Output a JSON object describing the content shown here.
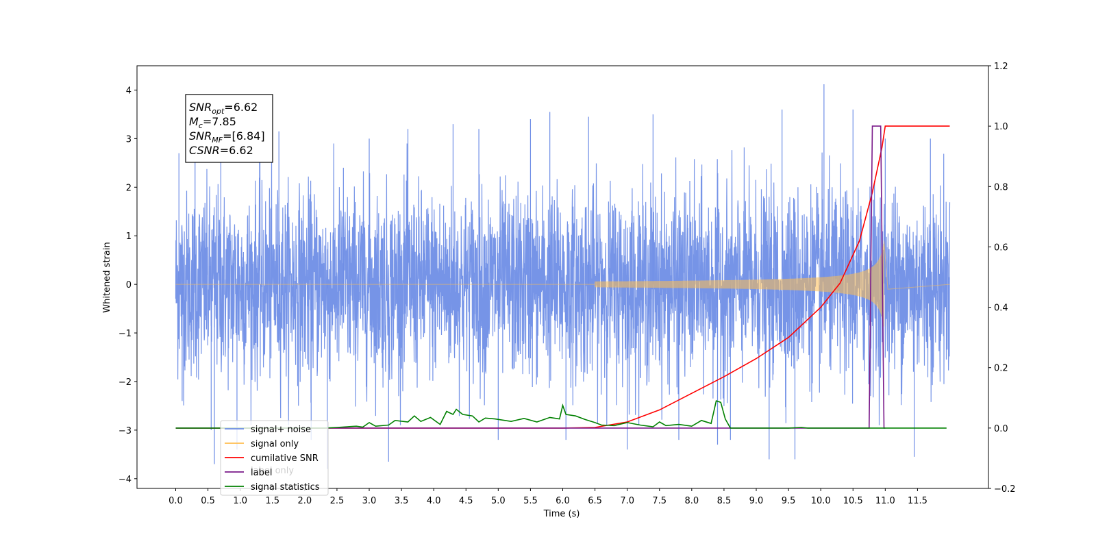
{
  "chart_data": {
    "type": "line",
    "xlabel": "Time (s)",
    "ylabel": "Whitened strain",
    "xlim": [
      -0.6,
      12.6
    ],
    "ylim": [
      -4.2,
      4.5
    ],
    "y2lim": [
      -0.2,
      1.2
    ],
    "x_ticks": [
      0.0,
      0.5,
      1.0,
      1.5,
      2.0,
      2.5,
      3.0,
      3.5,
      4.0,
      4.5,
      5.0,
      5.5,
      6.0,
      6.5,
      7.0,
      7.5,
      8.0,
      8.5,
      9.0,
      9.5,
      10.0,
      10.5,
      11.0,
      11.5
    ],
    "x_tick_labels": [
      "0.0",
      "0.5",
      "1.0",
      "1.5",
      "2.0",
      "2.5",
      "3.0",
      "3.5",
      "4.0",
      "4.5",
      "5.0",
      "5.5",
      "6.0",
      "6.5",
      "7.0",
      "7.5",
      "8.0",
      "8.5",
      "9.0",
      "9.5",
      "10.0",
      "10.5",
      "11.0",
      "11.5"
    ],
    "y_ticks": [
      -4,
      -3,
      -2,
      -1,
      0,
      1,
      2,
      3,
      4
    ],
    "y_tick_labels": [
      "−4",
      "−3",
      "−2",
      "−1",
      "0",
      "1",
      "2",
      "3",
      "4"
    ],
    "y2_ticks": [
      -0.2,
      0.0,
      0.2,
      0.4,
      0.6,
      0.8,
      1.0,
      1.2
    ],
    "y2_tick_labels": [
      "−0.2",
      "0.0",
      "0.2",
      "0.4",
      "0.6",
      "0.8",
      "1.0",
      "1.2"
    ],
    "legend_position": "lower-left",
    "grid": false,
    "series": [
      {
        "name": "signal+ noise",
        "color": "#6f8ee6",
        "axis": "left",
        "description_values": {
          "x_range": [
            0.0,
            12.0
          ],
          "typical_band": [
            -1.6,
            1.6
          ],
          "max_peak": 4.12,
          "min_peak": -3.82
        },
        "peaks": [
          {
            "x": 0.05,
            "y": 2.7
          },
          {
            "x": 0.1,
            "y": -2.4
          },
          {
            "x": 0.3,
            "y": 3.2
          },
          {
            "x": 0.55,
            "y": -3.0
          },
          {
            "x": 0.6,
            "y": -3.7
          },
          {
            "x": 0.7,
            "y": 2.9
          },
          {
            "x": 0.95,
            "y": -3.4
          },
          {
            "x": 1.3,
            "y": 3.0
          },
          {
            "x": 1.6,
            "y": 3.15
          },
          {
            "x": 2.1,
            "y": -3.2
          },
          {
            "x": 2.35,
            "y": -3.8
          },
          {
            "x": 2.6,
            "y": 2.4
          },
          {
            "x": 3.0,
            "y": 3.0
          },
          {
            "x": 3.3,
            "y": -3.65
          },
          {
            "x": 3.6,
            "y": 3.2
          },
          {
            "x": 4.3,
            "y": 3.3
          },
          {
            "x": 4.7,
            "y": 3.2
          },
          {
            "x": 5.0,
            "y": -3.2
          },
          {
            "x": 5.5,
            "y": 3.4
          },
          {
            "x": 5.8,
            "y": 3.55
          },
          {
            "x": 6.05,
            "y": -3.2
          },
          {
            "x": 6.4,
            "y": 3.45
          },
          {
            "x": 7.0,
            "y": -3.4
          },
          {
            "x": 7.4,
            "y": 3.5
          },
          {
            "x": 7.8,
            "y": -3.2
          },
          {
            "x": 8.4,
            "y": -3.3
          },
          {
            "x": 8.6,
            "y": -3.2
          },
          {
            "x": 9.2,
            "y": -3.6
          },
          {
            "x": 9.4,
            "y": 3.6
          },
          {
            "x": 9.6,
            "y": -3.6
          },
          {
            "x": 10.05,
            "y": 4.12
          },
          {
            "x": 10.5,
            "y": 3.6
          },
          {
            "x": 11.0,
            "y": 3.0
          },
          {
            "x": 11.45,
            "y": -3.55
          },
          {
            "x": 11.7,
            "y": 3.0
          }
        ]
      },
      {
        "name": "signal only",
        "color": "#ffbe50",
        "axis": "left",
        "description_values": {
          "chirp_start": 6.5,
          "merger": 10.98,
          "peak_amplitude": 0.9
        }
      },
      {
        "name": "cumilative SNR",
        "color": "#ff0000",
        "axis": "right",
        "points": [
          [
            0.0,
            0.0
          ],
          [
            6.0,
            0.0
          ],
          [
            6.5,
            0.002
          ],
          [
            7.0,
            0.02
          ],
          [
            7.5,
            0.06
          ],
          [
            8.0,
            0.115
          ],
          [
            8.5,
            0.17
          ],
          [
            9.0,
            0.23
          ],
          [
            9.5,
            0.3
          ],
          [
            10.0,
            0.4
          ],
          [
            10.3,
            0.48
          ],
          [
            10.6,
            0.62
          ],
          [
            10.8,
            0.78
          ],
          [
            10.95,
            0.93
          ],
          [
            11.0,
            1.0
          ],
          [
            12.0,
            1.0
          ]
        ]
      },
      {
        "name": "label",
        "color": "#7a1a8a",
        "axis": "right",
        "points": [
          [
            0.0,
            0.0
          ],
          [
            10.75,
            0.0
          ],
          [
            10.8,
            1.0
          ],
          [
            10.93,
            1.0
          ],
          [
            10.98,
            0.0
          ],
          [
            11.0,
            0.0
          ]
        ]
      },
      {
        "name": "signal statistics",
        "color": "#008000",
        "axis": "right",
        "points": [
          [
            0.0,
            0.0
          ],
          [
            2.3,
            0.0
          ],
          [
            2.5,
            0.002
          ],
          [
            2.8,
            0.006
          ],
          [
            2.9,
            0.003
          ],
          [
            3.0,
            0.018
          ],
          [
            3.1,
            0.006
          ],
          [
            3.3,
            0.01
          ],
          [
            3.4,
            0.025
          ],
          [
            3.6,
            0.02
          ],
          [
            3.7,
            0.04
          ],
          [
            3.8,
            0.022
          ],
          [
            3.95,
            0.035
          ],
          [
            4.1,
            0.012
          ],
          [
            4.2,
            0.055
          ],
          [
            4.3,
            0.045
          ],
          [
            4.35,
            0.062
          ],
          [
            4.45,
            0.045
          ],
          [
            4.6,
            0.04
          ],
          [
            4.7,
            0.02
          ],
          [
            4.8,
            0.033
          ],
          [
            4.95,
            0.03
          ],
          [
            5.2,
            0.022
          ],
          [
            5.4,
            0.032
          ],
          [
            5.6,
            0.02
          ],
          [
            5.8,
            0.035
          ],
          [
            5.95,
            0.03
          ],
          [
            6.0,
            0.075
          ],
          [
            6.05,
            0.045
          ],
          [
            6.2,
            0.04
          ],
          [
            6.35,
            0.028
          ],
          [
            6.5,
            0.018
          ],
          [
            6.6,
            0.01
          ],
          [
            6.8,
            0.008
          ],
          [
            7.0,
            0.018
          ],
          [
            7.2,
            0.01
          ],
          [
            7.4,
            0.004
          ],
          [
            7.5,
            0.02
          ],
          [
            7.6,
            0.008
          ],
          [
            7.8,
            0.012
          ],
          [
            8.0,
            0.006
          ],
          [
            8.15,
            0.025
          ],
          [
            8.3,
            0.015
          ],
          [
            8.38,
            0.09
          ],
          [
            8.45,
            0.085
          ],
          [
            8.52,
            0.03
          ],
          [
            8.6,
            0.0
          ],
          [
            9.5,
            0.0
          ],
          [
            9.7,
            0.002
          ],
          [
            9.8,
            0.0
          ],
          [
            11.0,
            0.0
          ],
          [
            11.95,
            0.0
          ]
        ]
      }
    ],
    "annotation": {
      "lines": [
        {
          "base": "SNR",
          "sub": "opt",
          "value": "=6.62"
        },
        {
          "base": "M",
          "sub": "c",
          "value": "=7.85"
        },
        {
          "base": "SNR",
          "sub": "MF",
          "value": "=[6.84]"
        },
        {
          "base": "CSNR",
          "sub": "",
          "value": "=6.62"
        }
      ]
    },
    "legend": [
      {
        "label": "signal+ noise",
        "color": "#6f8ee6"
      },
      {
        "label": "signal only",
        "color": "#ffbe50"
      },
      {
        "label": "cumilative SNR",
        "color": "#ff0000"
      },
      {
        "label": "label",
        "color": "#7a1a8a"
      },
      {
        "label": "signal statistics",
        "color": "#008000"
      }
    ],
    "hidden_legend_fragment": "label only"
  }
}
